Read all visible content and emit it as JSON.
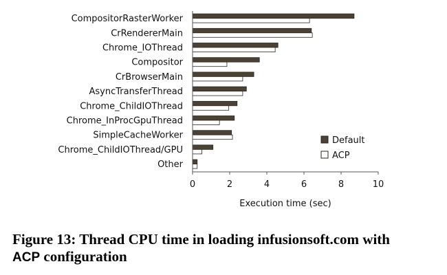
{
  "chart_data": {
    "type": "bar",
    "orientation": "horizontal",
    "categories": [
      "CompositorRasterWorker",
      "CrRendererMain",
      "Chrome_IOThread",
      "Compositor",
      "CrBrowserMain",
      "AsyncTransferThread",
      "Chrome_ChildIOThread",
      "Chrome_InProcGpuThread",
      "SimpleCacheWorker",
      "Chrome_ChildIOThread/GPU",
      "Other"
    ],
    "series": [
      {
        "name": "Default",
        "values": [
          8.7,
          6.4,
          4.6,
          3.6,
          3.3,
          2.9,
          2.4,
          2.25,
          2.1,
          1.1,
          0.25
        ]
      },
      {
        "name": "ACP",
        "values": [
          6.3,
          6.45,
          4.45,
          1.85,
          2.7,
          2.7,
          1.95,
          1.45,
          2.15,
          0.5,
          0.25
        ]
      }
    ],
    "colors": {
      "Default": "#4a4232",
      "ACP": "#ffffff"
    },
    "xlabel": "Execution time (sec)",
    "ylabel": "",
    "xlim": [
      0,
      10
    ],
    "xticks": [
      0,
      2,
      4,
      6,
      8,
      10
    ],
    "grid": false,
    "legend_position": "lower-right"
  },
  "caption": {
    "part1": "Figure 13: Thread CPU time in loading infusionsoft.com with",
    "part2_sans": "ACP",
    "part2_rest": " configuration"
  }
}
